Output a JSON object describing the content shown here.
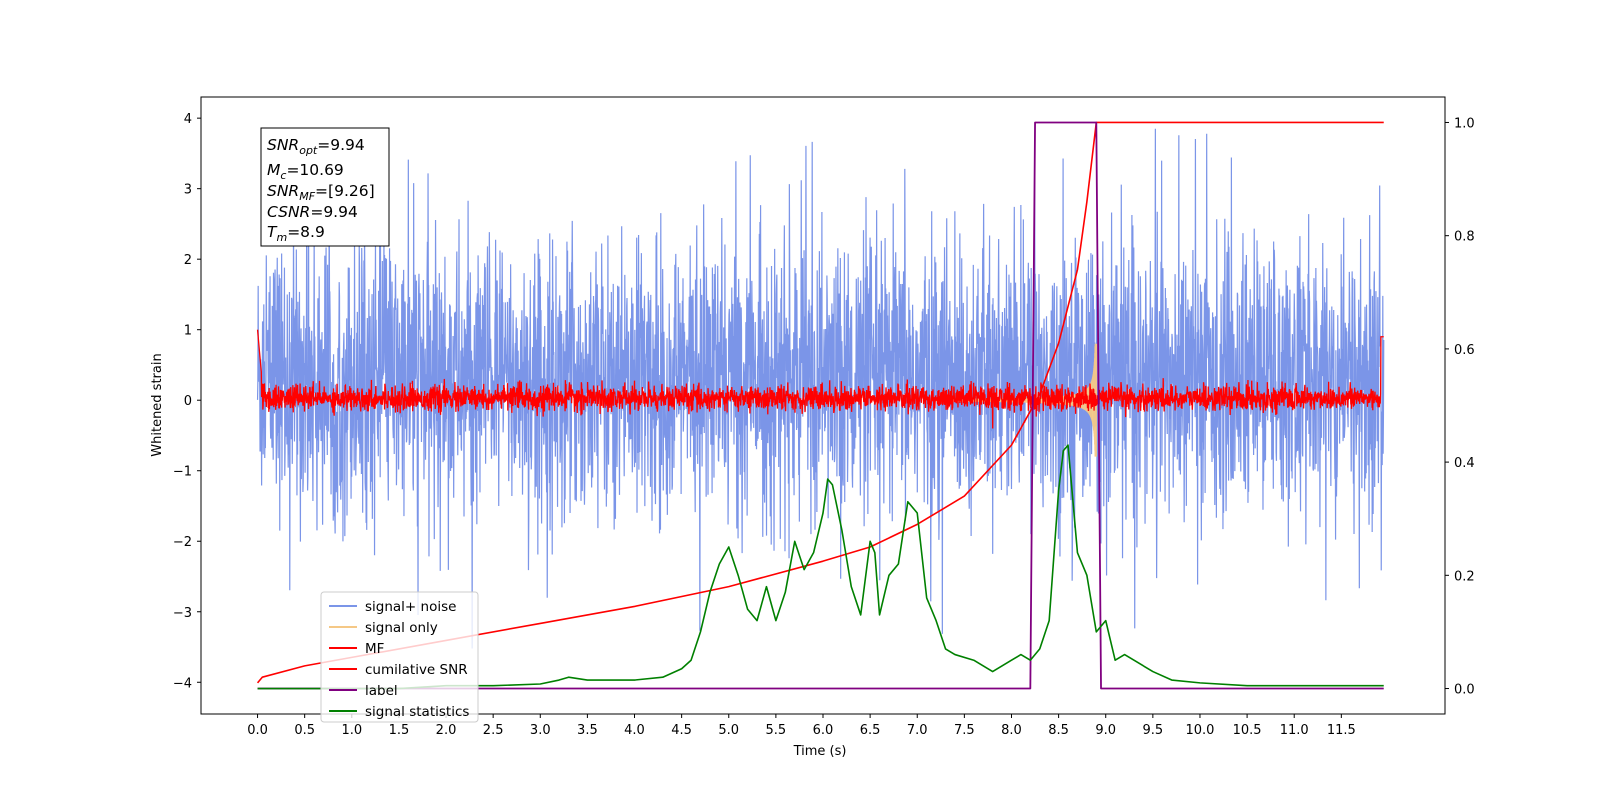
{
  "chart_data": {
    "type": "line",
    "xlabel": "Time (s)",
    "ylabel": "Whitened strain",
    "xlim": [
      -0.6,
      12.6
    ],
    "ylim": [
      -4.45,
      4.3
    ],
    "y2lim": [
      -0.045,
      1.045
    ],
    "x_ticks": [
      0.0,
      0.5,
      1.0,
      1.5,
      2.0,
      2.5,
      3.0,
      3.5,
      4.0,
      4.5,
      5.0,
      5.5,
      6.0,
      6.5,
      7.0,
      7.5,
      8.0,
      8.5,
      9.0,
      9.5,
      10.0,
      10.5,
      11.0,
      11.5
    ],
    "x_tick_labels": [
      "0.0",
      "0.5",
      "1.0",
      "1.5",
      "2.0",
      "2.5",
      "3.0",
      "3.5",
      "4.0",
      "4.5",
      "5.0",
      "5.5",
      "6.0",
      "6.5",
      "7.0",
      "7.5",
      "8.0",
      "8.5",
      "9.0",
      "9.5",
      "10.0",
      "10.5",
      "11.0",
      "11.5"
    ],
    "y_ticks": [
      4,
      3,
      2,
      1,
      0,
      -1,
      -2,
      -3,
      -4
    ],
    "y_tick_labels": [
      "4",
      "3",
      "2",
      "1",
      "0",
      "−1",
      "−2",
      "−3",
      "−4"
    ],
    "y2_ticks": [
      1.0,
      0.8,
      0.6,
      0.4,
      0.2,
      0.0
    ],
    "y2_tick_labels": [
      "1.0",
      "0.8",
      "0.6",
      "0.4",
      "0.2",
      "0.0"
    ],
    "grid": false,
    "legend_position": "lower-left",
    "series": [
      {
        "name": "signal+ noise",
        "axis": "left",
        "color": "#7b95e8",
        "note": "dense noise, roughly within ±2.5 with spikes to about ±4, spanning 0–12 s"
      },
      {
        "name": "signal only",
        "axis": "left",
        "color": "#f5c886",
        "note": "chirp envelope growing from ~7.3 s to about ±0.8 at 8.9 s"
      },
      {
        "name": "MF",
        "axis": "left",
        "color": "#ff0000",
        "note": "matched-filter output around 0, roughly ±0.3"
      },
      {
        "name": "cumilative SNR",
        "axis": "right",
        "color": "#ff0000",
        "x": [
          0.0,
          0.05,
          0.5,
          1.0,
          2.0,
          3.0,
          4.0,
          5.0,
          6.0,
          6.5,
          7.0,
          7.5,
          8.0,
          8.3,
          8.5,
          8.7,
          8.8,
          8.9,
          9.0,
          10.0,
          11.0,
          11.95
        ],
        "y": [
          0.01,
          0.02,
          0.04,
          0.055,
          0.085,
          0.115,
          0.145,
          0.18,
          0.225,
          0.25,
          0.29,
          0.34,
          0.43,
          0.52,
          0.61,
          0.74,
          0.86,
          1.0,
          1.0,
          1.0,
          1.0,
          1.0
        ]
      },
      {
        "name": "label",
        "axis": "right",
        "color": "#800080",
        "x": [
          0.0,
          8.2,
          8.25,
          8.9,
          8.95,
          11.95
        ],
        "y": [
          0.0,
          0.0,
          1.0,
          1.0,
          0.0,
          0.0
        ]
      },
      {
        "name": "signal statistics",
        "axis": "right",
        "color": "#008000",
        "x": [
          0.0,
          0.5,
          1.0,
          1.5,
          2.0,
          2.5,
          3.0,
          3.2,
          3.3,
          3.5,
          3.8,
          4.0,
          4.3,
          4.5,
          4.6,
          4.7,
          4.8,
          4.9,
          5.0,
          5.1,
          5.2,
          5.3,
          5.4,
          5.5,
          5.6,
          5.7,
          5.8,
          5.9,
          6.0,
          6.05,
          6.1,
          6.2,
          6.3,
          6.4,
          6.5,
          6.55,
          6.6,
          6.7,
          6.8,
          6.9,
          7.0,
          7.1,
          7.2,
          7.3,
          7.4,
          7.6,
          7.8,
          8.0,
          8.1,
          8.2,
          8.3,
          8.4,
          8.5,
          8.55,
          8.6,
          8.7,
          8.8,
          8.9,
          9.0,
          9.1,
          9.2,
          9.3,
          9.5,
          9.7,
          10.0,
          10.5,
          11.0,
          11.5,
          11.95
        ],
        "y": [
          0.0,
          0.0,
          0.0,
          0.0,
          0.005,
          0.005,
          0.008,
          0.015,
          0.02,
          0.015,
          0.015,
          0.015,
          0.02,
          0.035,
          0.05,
          0.1,
          0.17,
          0.22,
          0.25,
          0.2,
          0.14,
          0.12,
          0.18,
          0.12,
          0.17,
          0.26,
          0.21,
          0.24,
          0.31,
          0.37,
          0.36,
          0.28,
          0.18,
          0.13,
          0.26,
          0.24,
          0.13,
          0.2,
          0.22,
          0.33,
          0.31,
          0.16,
          0.12,
          0.07,
          0.06,
          0.05,
          0.03,
          0.05,
          0.06,
          0.05,
          0.07,
          0.12,
          0.35,
          0.42,
          0.43,
          0.24,
          0.2,
          0.1,
          0.12,
          0.05,
          0.06,
          0.05,
          0.03,
          0.015,
          0.01,
          0.005,
          0.005,
          0.005,
          0.005
        ]
      }
    ],
    "annotations": {
      "snr_opt": "=9.94",
      "mc": "=10.69",
      "snr_mf": "=[9.26]",
      "csnr": "=9.94",
      "tm": "=8.9"
    }
  },
  "info_box": {
    "l1_main": "SNR",
    "l1_sub": "opt",
    "l1_val": "=9.94",
    "l2_main": "M",
    "l2_sub": "c",
    "l2_val": "=10.69",
    "l3_main": "SNR",
    "l3_sub": "MF",
    "l3_val": "=[9.26]",
    "l4_main": "CSNR",
    "l4_val": "=9.94",
    "l5_main": "T",
    "l5_sub": "m",
    "l5_val": "=8.9"
  },
  "colors": {
    "noise": "#7b95e8",
    "signal": "#f5c886",
    "mf": "#ff0000",
    "csnr": "#ff0000",
    "label": "#800080",
    "stats": "#008000"
  }
}
